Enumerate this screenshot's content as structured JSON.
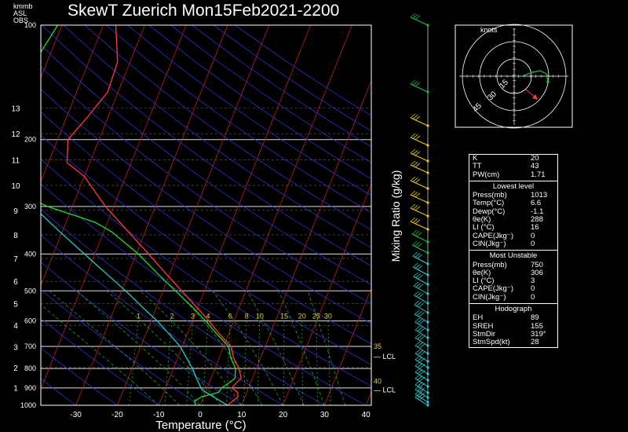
{
  "title": "SkewT Zuerich Mon15Feb2021-2200",
  "unit_labels": [
    "kmmb",
    "ASL",
    "OBS"
  ],
  "chart_data": {
    "type": "line",
    "xlabel": "Temperature (°C)",
    "ylabel_right": "Mixing Ratio (g/kg)",
    "x_ticks": [
      -30,
      -20,
      -10,
      0,
      10,
      20,
      30,
      40
    ],
    "pressure_ticks": [
      100,
      200,
      300,
      400,
      500,
      600,
      700,
      800,
      900,
      1000
    ],
    "height_ticks_km": [
      1,
      2,
      3,
      4,
      5,
      6,
      7,
      8,
      9,
      10,
      11,
      12,
      13
    ],
    "mixing_ratio_labels": [
      "1",
      "2",
      "3",
      "4",
      "6",
      "8",
      "10",
      "15",
      "20",
      "25",
      "30"
    ],
    "annotations": {
      "lcl_label": "LCL",
      "theta_e_markers": [
        {
          "label": "35",
          "pressure": 700
        },
        {
          "label": "40",
          "pressure": 865
        }
      ],
      "lcl_pressures": [
        745,
        912
      ]
    },
    "series": [
      {
        "points": [
          [
            1000,
            6.6
          ],
          [
            975,
            7.4
          ],
          [
            950,
            8.3
          ],
          [
            925,
            7.8
          ],
          [
            900,
            6.0
          ],
          [
            875,
            6.5
          ],
          [
            850,
            7.3
          ],
          [
            800,
            5.8
          ],
          [
            750,
            3.5
          ],
          [
            700,
            1.8
          ],
          [
            650,
            -2.2
          ],
          [
            600,
            -6.0
          ],
          [
            550,
            -10.5
          ],
          [
            500,
            -15.5
          ],
          [
            450,
            -21.0
          ],
          [
            400,
            -27.0
          ],
          [
            350,
            -34.0
          ],
          [
            300,
            -42.0
          ],
          [
            250,
            -50.0
          ],
          [
            230,
            -55.5
          ],
          [
            200,
            -57.5
          ],
          [
            175,
            -55.0
          ],
          [
            150,
            -52.5
          ],
          [
            125,
            -53.0
          ],
          [
            100,
            -57.0
          ]
        ]
      },
      {
        "points": [
          [
            1000,
            -1.1
          ],
          [
            975,
            -1.8
          ],
          [
            950,
            -0.5
          ],
          [
            925,
            3.2
          ],
          [
            900,
            3.5
          ],
          [
            875,
            4.7
          ],
          [
            850,
            5.8
          ],
          [
            800,
            5.0
          ],
          [
            750,
            2.8
          ],
          [
            700,
            1.2
          ],
          [
            650,
            -2.8
          ],
          [
            600,
            -6.8
          ],
          [
            550,
            -11.5
          ],
          [
            500,
            -17.0
          ],
          [
            450,
            -23.0
          ],
          [
            400,
            -29.5
          ],
          [
            350,
            -38.0
          ],
          [
            330,
            -43.0
          ],
          [
            300,
            -56.0
          ],
          [
            280,
            -63.0
          ],
          [
            250,
            -71.0
          ],
          [
            230,
            -77.5
          ],
          [
            200,
            -80.0
          ],
          [
            170,
            -78.0
          ],
          [
            150,
            -75.0
          ],
          [
            125,
            -73.0
          ],
          [
            100,
            -71.0
          ]
        ]
      },
      {
        "points": [
          [
            1000,
            6.6
          ],
          [
            912,
            -1.0
          ],
          [
            850,
            -3.5
          ],
          [
            800,
            -5.4
          ],
          [
            750,
            -7.9
          ],
          [
            700,
            -10.5
          ],
          [
            650,
            -14.3
          ],
          [
            600,
            -18.5
          ],
          [
            550,
            -23.6
          ],
          [
            500,
            -29.0
          ],
          [
            450,
            -35.4
          ],
          [
            400,
            -42.5
          ],
          [
            350,
            -50.5
          ],
          [
            300,
            -59.5
          ],
          [
            250,
            -68.0
          ],
          [
            200,
            -76.5
          ],
          [
            150,
            -84.0
          ],
          [
            100,
            -92.0
          ]
        ]
      }
    ]
  },
  "hodograph": {
    "title": "knots",
    "ring_labels": [
      "15",
      "30",
      "45"
    ]
  },
  "indices": [
    {
      "k": "K",
      "v": "20"
    },
    {
      "k": "TT",
      "v": "43"
    },
    {
      "k": "PW(cm)",
      "v": "1.71"
    }
  ],
  "lowest_title": "Lowest level",
  "lowest": [
    {
      "k": "Press(mb)",
      "v": "1013"
    },
    {
      "k": "Temp(°C)",
      "v": "6.6"
    },
    {
      "k": "Dewp(°C)",
      "v": "-1.1"
    },
    {
      "k": "θe(K)",
      "v": "288"
    },
    {
      "k": "LI (°C)",
      "v": "16"
    },
    {
      "k": "CAPE(Jkg⁻)",
      "v": "0"
    },
    {
      "k": "CIN(Jkg⁻)",
      "v": "0"
    }
  ],
  "unstable_title": "Most Unstable",
  "unstable": [
    {
      "k": "Press(mb)",
      "v": "750"
    },
    {
      "k": "θe(K)",
      "v": "306"
    },
    {
      "k": "LI (°C)",
      "v": "3"
    },
    {
      "k": "CAPE(Jkg⁻)",
      "v": "0"
    },
    {
      "k": "CIN(Jkg⁻)",
      "v": "0"
    }
  ],
  "hodo_title": "Hodograph",
  "hodo": [
    {
      "k": "EH",
      "v": "89"
    },
    {
      "k": "SREH",
      "v": "155"
    },
    {
      "k": "StmDir",
      "v": "319°"
    },
    {
      "k": "StmSpd(kt)",
      "v": "28"
    }
  ],
  "colors": {
    "temperature": "#ff3b3b",
    "dewpoint": "#22dd22",
    "parcel": "#22cccc",
    "isotherm": "#c02020",
    "dry_adiabat": "#3030d0",
    "moist_adiabat": "#20a040",
    "mixing_ratio": "#22aa22",
    "mixing_label": "#e8d020",
    "barb_yellow": "#f0d000",
    "barb_cyan": "#20d0d0",
    "barb_green": "#20c040"
  }
}
